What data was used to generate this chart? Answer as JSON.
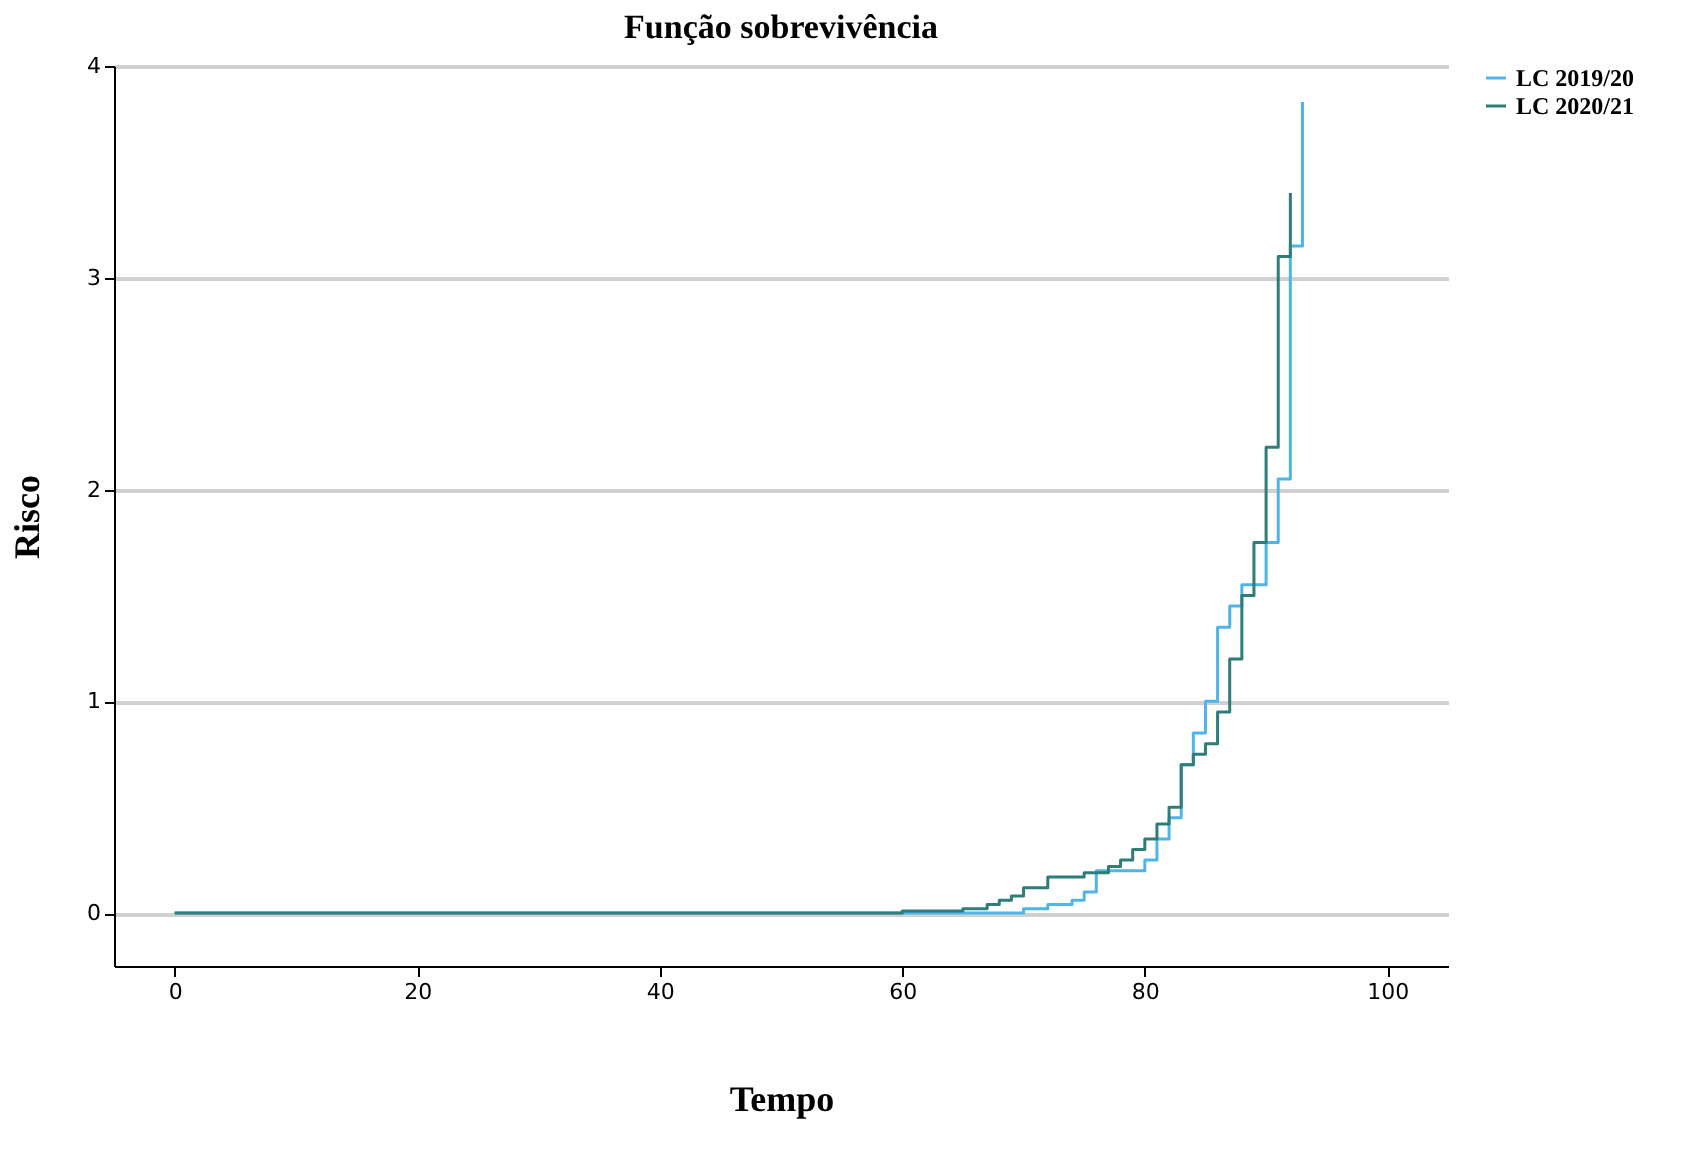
{
  "chart_data": {
    "type": "step",
    "title": "Função sobrevivência",
    "xlabel": "Tempo",
    "ylabel": "Risco",
    "xlim": [
      -5,
      105
    ],
    "xticks": [
      0,
      20,
      40,
      60,
      80,
      100
    ],
    "ylim": [
      -0.25,
      4
    ],
    "yticks": [
      0,
      1,
      2,
      3,
      4
    ],
    "grid": "y",
    "legend": "right",
    "line_style": "solid",
    "marker": "none",
    "series": [
      {
        "name": "LC 2019/20",
        "color": "#4fb4ea",
        "x": [
          0,
          70,
          72,
          74,
          75,
          76,
          80,
          81,
          82,
          83,
          84,
          85,
          86,
          87,
          88,
          90,
          91,
          92,
          93,
          93
        ],
        "values": [
          0,
          0.02,
          0.04,
          0.06,
          0.1,
          0.2,
          0.25,
          0.35,
          0.45,
          0.7,
          0.85,
          1.0,
          1.35,
          1.45,
          1.55,
          1.75,
          2.05,
          3.15,
          3.83,
          3.83
        ]
      },
      {
        "name": "LC 2020/21",
        "color": "#2e7d78",
        "x": [
          0,
          60,
          65,
          67,
          68,
          69,
          70,
          72,
          75,
          77,
          78,
          79,
          80,
          81,
          82,
          83,
          84,
          85,
          86,
          87,
          88,
          89,
          90,
          91,
          92,
          92
        ],
        "values": [
          0,
          0.01,
          0.02,
          0.04,
          0.06,
          0.08,
          0.12,
          0.17,
          0.19,
          0.22,
          0.25,
          0.3,
          0.35,
          0.42,
          0.5,
          0.7,
          0.75,
          0.8,
          0.95,
          1.2,
          1.5,
          1.75,
          2.2,
          3.1,
          3.4,
          3.4
        ]
      }
    ]
  }
}
